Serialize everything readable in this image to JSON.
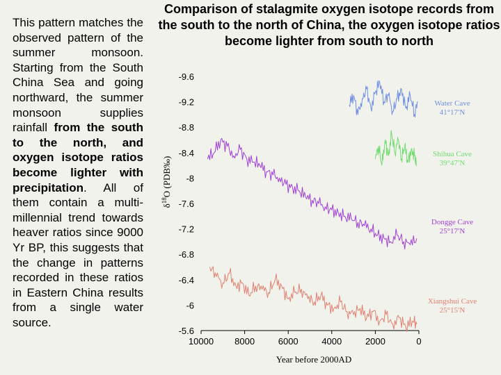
{
  "slide": {
    "title": "Comparison of stalagmite oxygen isotope records from the south to the north of China, the oxygen isotope ratios become lighter from south to north",
    "body": {
      "p1": "This pattern matches the observed pattern of the summer monsoon. Starting from the South China Sea and going northward, the summer monsoon supplies rainfall ",
      "b1": "from the south to the north, and oxygen isotope ratios become lighter with precipitation",
      "p2": ". All of them contain a multi-millennial trend towards heaver ratios since 9000 Yr BP, this suggests that the change in patterns recorded in these ratios in Eastern China results from a single water source."
    }
  },
  "chart_data": {
    "type": "line",
    "xlabel": "Year before 2000AD",
    "ylabel": "δ18O (PDB‰)",
    "xlim": [
      10000,
      0
    ],
    "ylim": [
      -9.6,
      -5.6
    ],
    "y_inverted": true,
    "x_ticks": [
      10000,
      8000,
      6000,
      4000,
      2000,
      0
    ],
    "y_ticks": [
      "-9.6",
      "-9.2",
      "-8.8",
      "-8.4",
      "-8",
      "-7.6",
      "-7.2",
      "-6.8",
      "-6.4",
      "-6",
      "-5.6"
    ],
    "grid": false,
    "series": [
      {
        "name": "Water Cave 41°17′N",
        "name_line1": "Water Cave",
        "name_line2": "41°17′N",
        "color": "#6f8fe0",
        "x": [
          3200,
          3000,
          2800,
          2600,
          2400,
          2200,
          2000,
          1800,
          1600,
          1400,
          1200,
          1000,
          800,
          600,
          400,
          200,
          50
        ],
        "y": [
          -9.15,
          -9.3,
          -9.0,
          -9.25,
          -9.4,
          -9.1,
          -9.35,
          -9.5,
          -9.2,
          -9.3,
          -9.05,
          -9.25,
          -9.4,
          -9.1,
          -9.3,
          -9.0,
          -9.2
        ]
      },
      {
        "name": "Shihua Cave 39°47′N",
        "name_line1": "Shihua Cave",
        "name_line2": "39°47′N",
        "color": "#6fdc6f",
        "x": [
          2000,
          1850,
          1700,
          1550,
          1400,
          1250,
          1100,
          950,
          800,
          650,
          500,
          350,
          200,
          100
        ],
        "y": [
          -8.3,
          -8.5,
          -8.2,
          -8.6,
          -8.35,
          -8.7,
          -8.4,
          -8.6,
          -8.3,
          -8.5,
          -8.25,
          -8.45,
          -8.35,
          -8.2
        ]
      },
      {
        "name": "Dongge Cave 25°17′N",
        "name_line1": "Dongge Cave",
        "name_line2": "25°17′N",
        "color": "#a040d8",
        "x": [
          9700,
          9400,
          9100,
          8800,
          8500,
          8200,
          7900,
          7600,
          7300,
          7000,
          6700,
          6400,
          6100,
          5800,
          5500,
          5200,
          4900,
          4600,
          4300,
          4000,
          3700,
          3400,
          3100,
          2800,
          2500,
          2200,
          1900,
          1600,
          1300,
          1000,
          700,
          400,
          100
        ],
        "y": [
          -8.3,
          -8.4,
          -8.6,
          -8.5,
          -8.35,
          -8.45,
          -8.3,
          -8.25,
          -8.2,
          -8.1,
          -8.05,
          -8.0,
          -7.9,
          -7.85,
          -7.8,
          -7.7,
          -7.65,
          -7.6,
          -7.55,
          -7.5,
          -7.45,
          -7.4,
          -7.35,
          -7.3,
          -7.25,
          -7.2,
          -7.1,
          -7.05,
          -7.0,
          -7.1,
          -7.0,
          -6.95,
          -7.05
        ]
      },
      {
        "name": "Xiangshui Cave 25°15′N",
        "name_line1": "Xiangshui Cave",
        "name_line2": "25°15′N",
        "color": "#e08070",
        "x": [
          9600,
          9300,
          9000,
          8700,
          8400,
          8100,
          7800,
          7500,
          7200,
          6900,
          6600,
          6300,
          6000,
          5700,
          5400,
          5100,
          4800,
          4500,
          4200,
          3900,
          3600,
          3300,
          3000,
          2700,
          2400,
          2100,
          1800,
          1500,
          1200,
          900,
          600,
          300,
          100
        ],
        "y": [
          -6.6,
          -6.45,
          -6.35,
          -6.5,
          -6.3,
          -6.35,
          -6.15,
          -6.3,
          -6.25,
          -6.2,
          -6.4,
          -6.3,
          -6.1,
          -6.2,
          -6.25,
          -6.1,
          -6.05,
          -6.15,
          -6.0,
          -5.95,
          -6.05,
          -5.9,
          -5.85,
          -5.95,
          -5.8,
          -5.9,
          -5.75,
          -5.85,
          -5.7,
          -5.8,
          -5.65,
          -5.75,
          -5.7
        ]
      }
    ]
  }
}
